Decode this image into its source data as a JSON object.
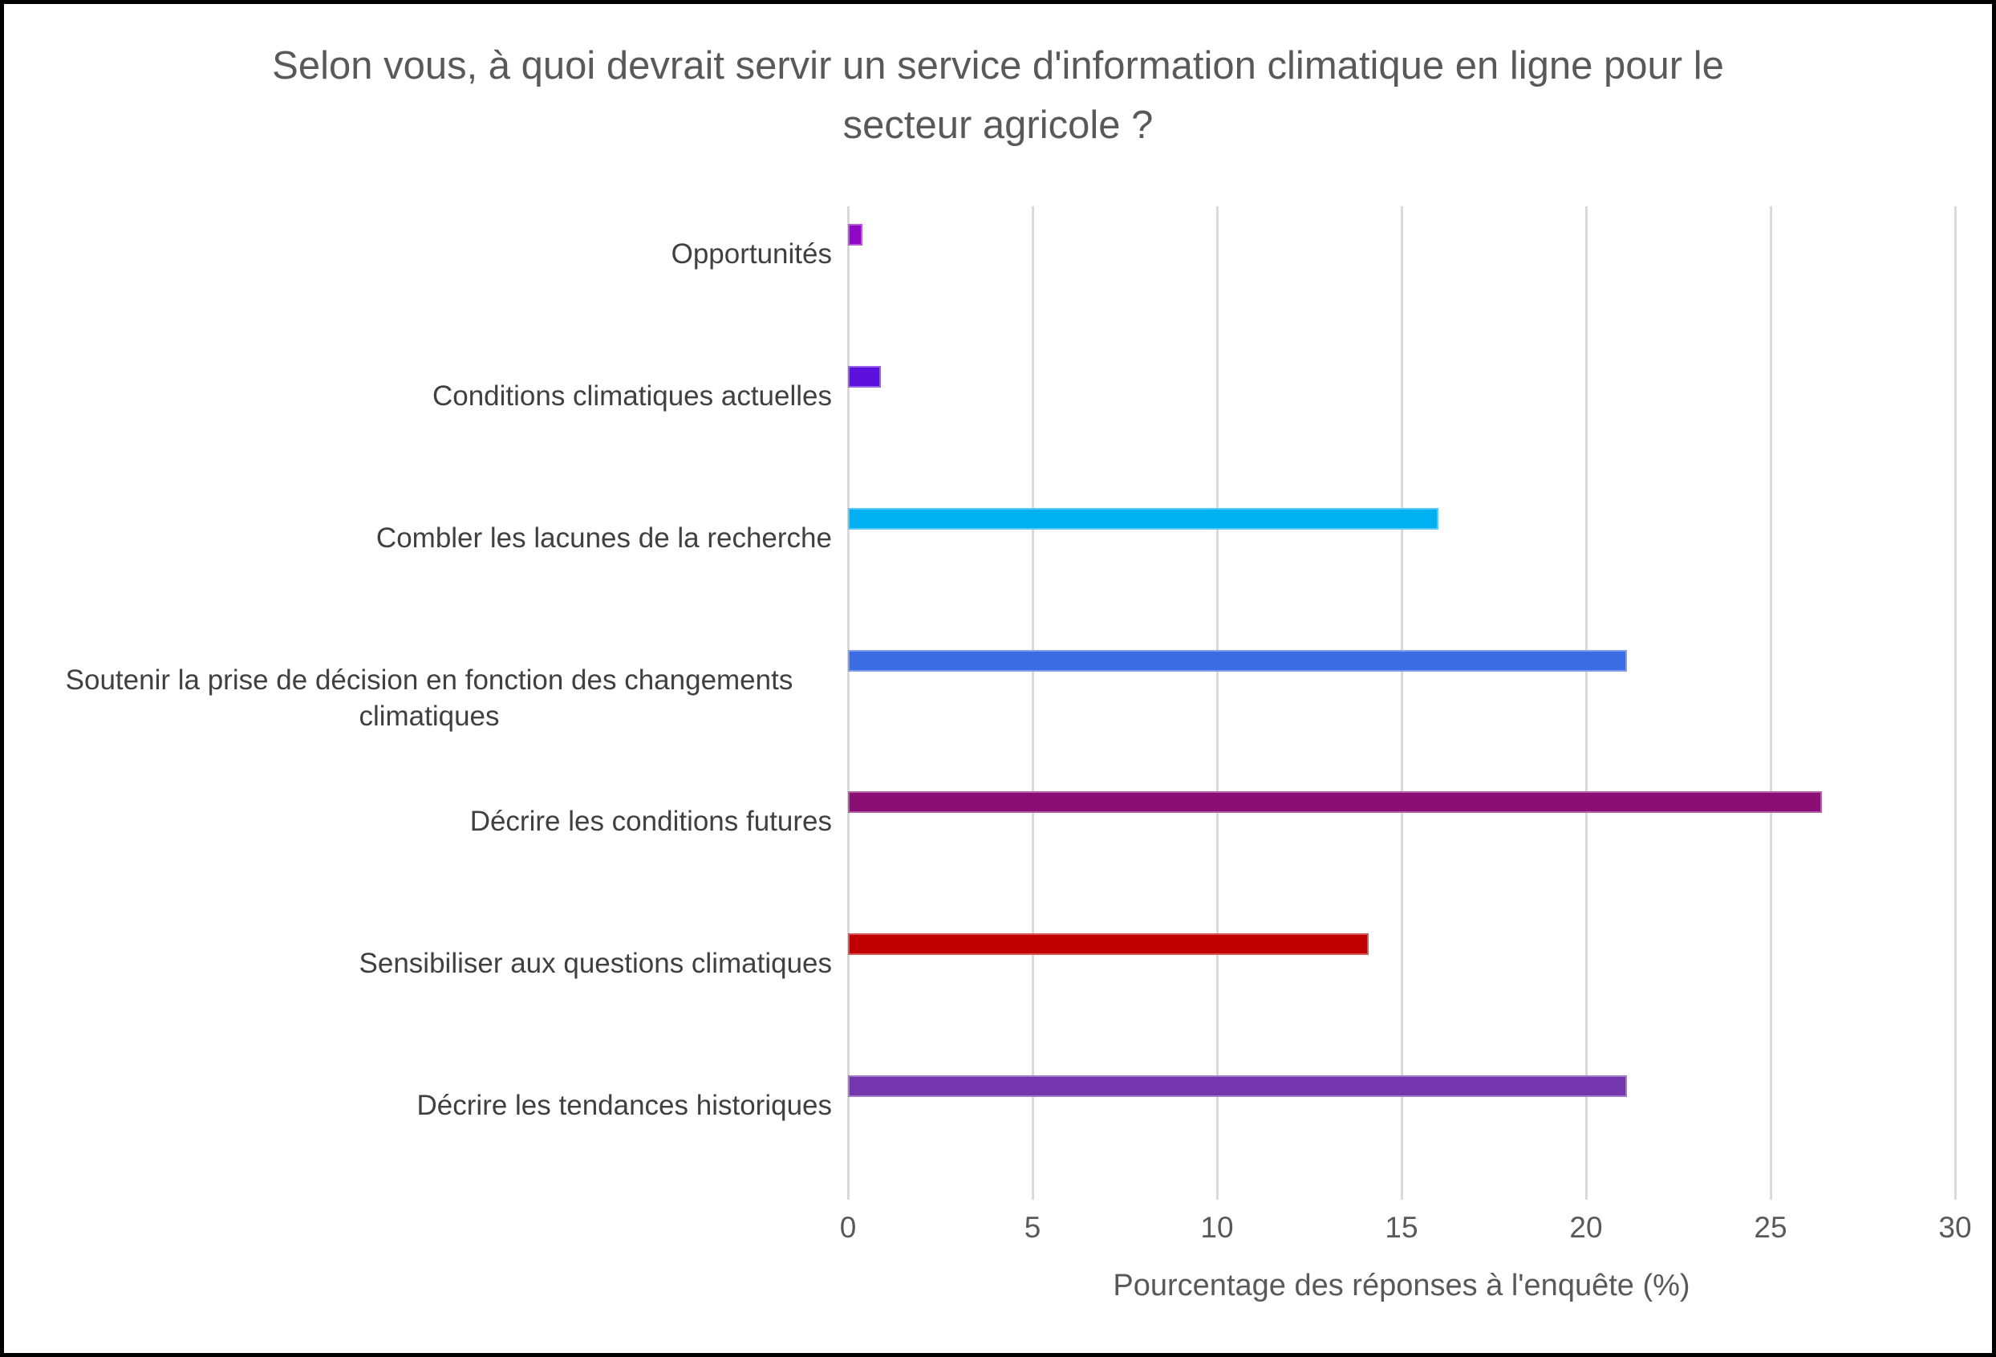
{
  "frame": {
    "background": "#ffffff",
    "border_color": "#000000"
  },
  "chart_data": {
    "type": "bar",
    "orientation": "horizontal",
    "title": "Selon vous, à quoi devrait servir un service d'information climatique en ligne pour le secteur agricole ?",
    "xlabel": "Pourcentage des réponses à l'enquête (%)",
    "ylabel": "",
    "xlim": [
      0,
      30
    ],
    "xticks": [
      "0",
      "5",
      "10",
      "15",
      "20",
      "25",
      "30"
    ],
    "grid": true,
    "legend": false,
    "gridline_color": "#d9d9d9",
    "title_color": "#595959",
    "tick_color": "#595959",
    "category_label_color": "#404040",
    "categories": [
      "Opportunités",
      "Conditions climatiques actuelles",
      "Combler les lacunes de la recherche",
      "Soutenir la prise de décision en fonction des changements climatiques",
      "Décrire les conditions futures",
      "Sensibiliser aux questions climatiques",
      "Décrire les tendances historiques"
    ],
    "values": [
      0.4,
      0.9,
      16.0,
      21.1,
      26.4,
      14.1,
      21.1
    ],
    "bar_colors": [
      "#8f06c4",
      "#5b10db",
      "#00b0f0",
      "#3b6ce3",
      "#8a0e74",
      "#c00000",
      "#7436ac"
    ]
  }
}
